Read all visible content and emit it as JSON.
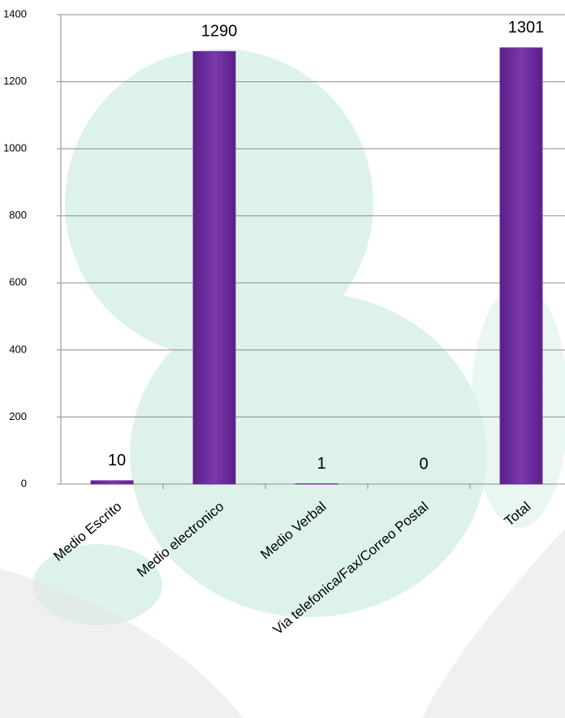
{
  "chart_data": {
    "type": "bar",
    "categories": [
      "Medio Escrito",
      "Medio electronico",
      "Medio Verbal",
      "Via telefonica/Fax/Correo Postal",
      "Total"
    ],
    "values": [
      10,
      1290,
      1,
      0,
      1301
    ],
    "color": "#7030a0",
    "ylim": [
      0,
      1400
    ],
    "yticks": [
      0,
      200,
      400,
      600,
      800,
      1000,
      1200,
      1400
    ],
    "grid": true
  }
}
